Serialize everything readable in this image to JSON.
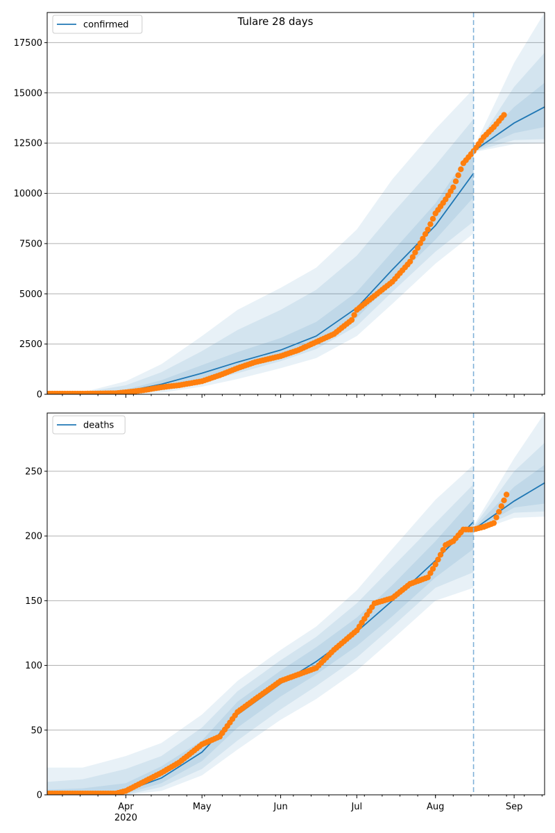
{
  "figure": {
    "title": "Tulare 28 days"
  },
  "colors": {
    "line": "#1f77b4",
    "points": "#ff7f0e",
    "band": "#1f77b4",
    "grid": "#b0b0b0",
    "forecast_line": "#7fb1d8"
  },
  "x_axis": {
    "start": "2020-03-01",
    "end": "2020-09-13",
    "month_ticks": [
      {
        "date": "2020-04-01",
        "label": "Apr"
      },
      {
        "date": "2020-05-01",
        "label": "May"
      },
      {
        "date": "2020-06-01",
        "label": "Jun"
      },
      {
        "date": "2020-07-01",
        "label": "Jul"
      },
      {
        "date": "2020-08-01",
        "label": "Aug"
      },
      {
        "date": "2020-09-01",
        "label": "Sep"
      }
    ],
    "year_label": "2020",
    "forecast_start": "2020-08-16"
  },
  "chart_data": [
    {
      "type": "line",
      "legend": "confirmed",
      "legend_position": "top-left",
      "ylim": [
        0,
        19000
      ],
      "yticks": [
        0,
        2500,
        5000,
        7500,
        10000,
        12500,
        15000,
        17500
      ],
      "grid": "horizontal",
      "model": {
        "name": "confirmed",
        "x": [
          "2020-03-01",
          "2020-03-15",
          "2020-04-01",
          "2020-04-15",
          "2020-05-01",
          "2020-05-15",
          "2020-06-01",
          "2020-06-15",
          "2020-07-01",
          "2020-07-15",
          "2020-08-01",
          "2020-08-16",
          "2020-08-16",
          "2020-09-01",
          "2020-09-13"
        ],
        "y": [
          30,
          30,
          150,
          500,
          1050,
          1600,
          2200,
          2900,
          4300,
          6200,
          8400,
          11000,
          12100,
          13500,
          14300
        ],
        "bands": [
          {
            "low": [
              0,
              0,
              0,
              80,
              380,
              760,
              1300,
              1800,
              2900,
              4500,
              6500,
              8000,
              12050,
              12450,
              12500
            ],
            "high": [
              70,
              100,
              650,
              1500,
              2900,
              4200,
              5300,
              6300,
              8200,
              10700,
              13200,
              15200,
              12250,
              16500,
              19000
            ]
          },
          {
            "low": [
              0,
              0,
              40,
              200,
              600,
              1050,
              1650,
              2250,
              3400,
              5100,
              7100,
              8600,
              12080,
              12650,
              12700
            ],
            "high": [
              60,
              90,
              450,
              1100,
              2150,
              3200,
              4200,
              5200,
              6900,
              9000,
              11400,
              13700,
              12200,
              15300,
              17000
            ]
          },
          {
            "low": [
              10,
              15,
              90,
              350,
              800,
              1350,
              1900,
              2550,
              3800,
              5600,
              7700,
              9800,
              12100,
              13000,
              13300
            ],
            "high": [
              50,
              70,
              240,
              700,
              1450,
              2100,
              2800,
              3600,
              5100,
              7100,
              9500,
              12300,
              12200,
              14300,
              15500
            ]
          }
        ]
      },
      "observed": {
        "name": "confirmed",
        "x": [
          "2020-03-01",
          "2020-03-15",
          "2020-03-28",
          "2020-04-01",
          "2020-04-08",
          "2020-04-15",
          "2020-04-22",
          "2020-05-01",
          "2020-05-08",
          "2020-05-15",
          "2020-05-22",
          "2020-06-01",
          "2020-06-08",
          "2020-06-15",
          "2020-06-22",
          "2020-06-29",
          "2020-07-01",
          "2020-07-08",
          "2020-07-15",
          "2020-07-22",
          "2020-07-29",
          "2020-08-01",
          "2020-08-05",
          "2020-08-08",
          "2020-08-12",
          "2020-08-16",
          "2020-08-20",
          "2020-08-24",
          "2020-08-28"
        ],
        "y": [
          30,
          30,
          50,
          100,
          200,
          350,
          450,
          650,
          950,
          1300,
          1600,
          1900,
          2200,
          2600,
          3000,
          3700,
          4200,
          4900,
          5600,
          6600,
          8200,
          9000,
          9700,
          10300,
          11500,
          12100,
          12800,
          13300,
          13900
        ]
      }
    },
    {
      "type": "line",
      "legend": "deaths",
      "legend_position": "top-left",
      "ylim": [
        0,
        295
      ],
      "yticks": [
        0,
        50,
        100,
        150,
        200,
        250
      ],
      "grid": "horizontal",
      "model": {
        "name": "deaths",
        "x": [
          "2020-03-01",
          "2020-03-15",
          "2020-04-01",
          "2020-04-15",
          "2020-05-01",
          "2020-05-15",
          "2020-06-01",
          "2020-06-15",
          "2020-07-01",
          "2020-07-15",
          "2020-08-01",
          "2020-08-16",
          "2020-08-16",
          "2020-09-01",
          "2020-09-13"
        ],
        "y": [
          1,
          1,
          3,
          13,
          33,
          62,
          86,
          103,
          126,
          150,
          181,
          211,
          205,
          227,
          241
        ],
        "bands": [
          {
            "low": [
              0,
              0,
              0,
              3,
              15,
              35,
              58,
              74,
              96,
              120,
              150,
              160,
              203,
              214,
              215
            ],
            "high": [
              21,
              21,
              30,
              40,
              62,
              88,
              112,
              130,
              158,
              190,
              228,
              255,
              208,
              260,
              295
            ]
          },
          {
            "low": [
              0,
              0,
              0,
              6,
              20,
              42,
              66,
              84,
              106,
              130,
              160,
              172,
              204,
              218,
              219
            ],
            "high": [
              10,
              12,
              20,
              30,
              52,
              80,
              104,
              122,
              148,
              176,
              210,
              240,
              207,
              250,
              272
            ]
          },
          {
            "low": [
              0,
              0,
              1,
              9,
              26,
              52,
              76,
              93,
              115,
              138,
              168,
              190,
              204,
              222,
              225
            ],
            "high": [
              4,
              5,
              9,
              22,
              42,
              72,
              96,
              114,
              137,
              162,
              196,
              229,
              206,
              238,
              255
            ]
          }
        ]
      },
      "observed": {
        "name": "deaths",
        "x": [
          "2020-03-01",
          "2020-03-15",
          "2020-03-28",
          "2020-04-01",
          "2020-04-08",
          "2020-04-15",
          "2020-04-22",
          "2020-05-01",
          "2020-05-08",
          "2020-05-15",
          "2020-05-22",
          "2020-06-01",
          "2020-06-08",
          "2020-06-15",
          "2020-06-22",
          "2020-07-01",
          "2020-07-08",
          "2020-07-15",
          "2020-07-22",
          "2020-07-29",
          "2020-08-01",
          "2020-08-05",
          "2020-08-08",
          "2020-08-12",
          "2020-08-16",
          "2020-08-20",
          "2020-08-24",
          "2020-08-27",
          "2020-08-29"
        ],
        "y": [
          1,
          1,
          1,
          3,
          10,
          17,
          25,
          39,
          45,
          64,
          74,
          88,
          93,
          98,
          112,
          127,
          148,
          152,
          163,
          168,
          178,
          193,
          196,
          205,
          205,
          207,
          210,
          223,
          232
        ]
      }
    }
  ]
}
